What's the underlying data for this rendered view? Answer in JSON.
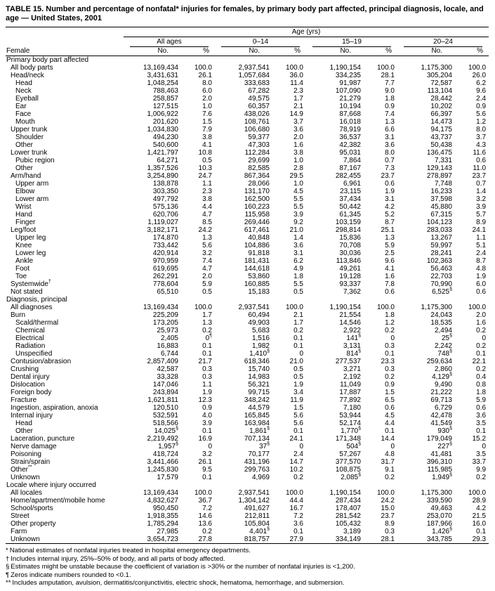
{
  "title": "TABLE 15. Number and percentage of nonfatal* injuries for females, by primary body part affected, principal diagnosis, locale, and age — United States, 2001",
  "header": {
    "age_span_label": "Age (yrs)",
    "row_label_header": "Female",
    "groups": [
      {
        "label": "All ages"
      },
      {
        "label": "0–14"
      },
      {
        "label": "15–19"
      },
      {
        "label": "20–24"
      }
    ],
    "sub_headers": [
      "No.",
      "%"
    ]
  },
  "sections": [
    {
      "title": "Primary body part affected",
      "rows": [
        {
          "label": "All body parts",
          "indent": 1,
          "values": [
            "13,169,434",
            "100.0",
            "2,937,541",
            "100.0",
            "1,190,154",
            "100.0",
            "1,175,300",
            "100.0"
          ]
        },
        {
          "label": "Head/neck",
          "indent": 1,
          "values": [
            "3,431,631",
            "26.1",
            "1,057,684",
            "36.0",
            "334,235",
            "28.1",
            "305,204",
            "26.0"
          ]
        },
        {
          "label": "Head",
          "indent": 2,
          "values": [
            "1,048,254",
            "8.0",
            "333,683",
            "11.4",
            "91,987",
            "7.7",
            "72,587",
            "6.2"
          ]
        },
        {
          "label": "Neck",
          "indent": 2,
          "values": [
            "788,463",
            "6.0",
            "67,282",
            "2.3",
            "107,090",
            "9.0",
            "113,104",
            "9.6"
          ]
        },
        {
          "label": "Eyeball",
          "indent": 2,
          "values": [
            "258,857",
            "2.0",
            "49,575",
            "1.7",
            "21,279",
            "1.8",
            "28,442",
            "2.4"
          ]
        },
        {
          "label": "Ear",
          "indent": 2,
          "values": [
            "127,515",
            "1.0",
            "60,357",
            "2.1",
            "10,194",
            "0.9",
            "10,202",
            "0.9"
          ]
        },
        {
          "label": "Face",
          "indent": 2,
          "values": [
            "1,006,922",
            "7.6",
            "438,026",
            "14.9",
            "87,668",
            "7.4",
            "66,397",
            "5.6"
          ]
        },
        {
          "label": "Mouth",
          "indent": 2,
          "values": [
            "201,620",
            "1.5",
            "108,761",
            "3.7",
            "16,018",
            "1.3",
            "14,473",
            "1.2"
          ]
        },
        {
          "label": "Upper trunk",
          "indent": 1,
          "values": [
            "1,034,830",
            "7.9",
            "106,680",
            "3.6",
            "78,919",
            "6.6",
            "94,175",
            "8.0"
          ]
        },
        {
          "label": "Shoulder",
          "indent": 2,
          "values": [
            "494,230",
            "3.8",
            "59,377",
            "2.0",
            "36,537",
            "3.1",
            "43,737",
            "3.7"
          ]
        },
        {
          "label": "Other",
          "indent": 2,
          "values": [
            "540,600",
            "4.1",
            "47,303",
            "1.6",
            "42,382",
            "3.6",
            "50,438",
            "4.3"
          ]
        },
        {
          "label": "Lower trunk",
          "indent": 1,
          "values": [
            "1,421,797",
            "10.8",
            "112,284",
            "3.8",
            "95,031",
            "8.0",
            "136,475",
            "11.6"
          ]
        },
        {
          "label": "Pubic region",
          "indent": 2,
          "values": [
            "64,271",
            "0.5",
            "29,699",
            "1.0",
            "7,864",
            "0.7",
            "7,331",
            "0.6"
          ]
        },
        {
          "label": "Other",
          "indent": 2,
          "values": [
            "1,357,526",
            "10.3",
            "82,585",
            "2.8",
            "87,167",
            "7.3",
            "129,143",
            "11.0"
          ]
        },
        {
          "label": "Arm/hand",
          "indent": 1,
          "values": [
            "3,254,890",
            "24.7",
            "867,364",
            "29.5",
            "282,455",
            "23.7",
            "278,897",
            "23.7"
          ]
        },
        {
          "label": "Upper arm",
          "indent": 2,
          "values": [
            "138,878",
            "1.1",
            "28,066",
            "1.0",
            "6,961",
            "0.6",
            "7,748",
            "0.7"
          ]
        },
        {
          "label": "Elbow",
          "indent": 2,
          "values": [
            "303,350",
            "2.3",
            "131,170",
            "4.5",
            "23,115",
            "1.9",
            "16,233",
            "1.4"
          ]
        },
        {
          "label": "Lower arm",
          "indent": 2,
          "values": [
            "497,792",
            "3.8",
            "162,500",
            "5.5",
            "37,434",
            "3.1",
            "37,598",
            "3.2"
          ]
        },
        {
          "label": "Wrist",
          "indent": 2,
          "values": [
            "575,136",
            "4.4",
            "160,223",
            "5.5",
            "50,442",
            "4.2",
            "45,880",
            "3.9"
          ]
        },
        {
          "label": "Hand",
          "indent": 2,
          "values": [
            "620,706",
            "4.7",
            "115,958",
            "3.9",
            "61,345",
            "5.2",
            "67,315",
            "5.7"
          ]
        },
        {
          "label": "Finger",
          "indent": 2,
          "values": [
            "1,119,027",
            "8.5",
            "269,446",
            "9.2",
            "103,159",
            "8.7",
            "104,123",
            "8.9"
          ]
        },
        {
          "label": "Leg/foot",
          "indent": 1,
          "values": [
            "3,182,171",
            "24.2",
            "617,461",
            "21.0",
            "298,814",
            "25.1",
            "283,033",
            "24.1"
          ]
        },
        {
          "label": "Upper leg",
          "indent": 2,
          "values": [
            "174,870",
            "1.3",
            "40,848",
            "1.4",
            "15,836",
            "1.3",
            "13,267",
            "1.1"
          ]
        },
        {
          "label": "Knee",
          "indent": 2,
          "values": [
            "733,442",
            "5.6",
            "104,886",
            "3.6",
            "70,708",
            "5.9",
            "59,997",
            "5.1"
          ]
        },
        {
          "label": "Lower leg",
          "indent": 2,
          "values": [
            "420,914",
            "3.2",
            "91,818",
            "3.1",
            "30,036",
            "2.5",
            "28,241",
            "2.4"
          ]
        },
        {
          "label": "Ankle",
          "indent": 2,
          "values": [
            "970,959",
            "7.4",
            "181,431",
            "6.2",
            "113,846",
            "9.6",
            "102,363",
            "8.7"
          ]
        },
        {
          "label": "Foot",
          "indent": 2,
          "values": [
            "619,695",
            "4.7",
            "144,618",
            "4.9",
            "49,261",
            "4.1",
            "56,463",
            "4.8"
          ]
        },
        {
          "label": "Toe",
          "indent": 2,
          "values": [
            "262,291",
            "2.0",
            "53,860",
            "1.8",
            "19,128",
            "1.6",
            "22,703",
            "1.9"
          ]
        },
        {
          "label": "Systemwide†",
          "indent": 1,
          "values": [
            "778,604",
            "5.9",
            "160,885",
            "5.5",
            "93,337",
            "7.8",
            "70,990",
            "6.0"
          ]
        },
        {
          "label": "Not stated",
          "indent": 1,
          "values": [
            "65,510",
            "0.5",
            "15,183",
            "0.5",
            "7,362",
            "0.6",
            "6,525§",
            "0.6"
          ]
        }
      ]
    },
    {
      "title": "Diagnosis, principal",
      "rows": [
        {
          "label": "All diagnoses",
          "indent": 1,
          "values": [
            "13,169,434",
            "100.0",
            "2,937,541",
            "100.0",
            "1,190,154",
            "100.0",
            "1,175,300",
            "100.0"
          ]
        },
        {
          "label": "Burn",
          "indent": 1,
          "values": [
            "225,209",
            "1.7",
            "60,494",
            "2.1",
            "21,554",
            "1.8",
            "24,043",
            "2.0"
          ]
        },
        {
          "label": "Scald/thermal",
          "indent": 2,
          "values": [
            "173,205",
            "1.3",
            "49,903",
            "1.7",
            "14,546",
            "1.2",
            "18,535",
            "1.6"
          ]
        },
        {
          "label": "Chemical",
          "indent": 2,
          "values": [
            "25,973",
            "0.2",
            "5,683",
            "0.2",
            "2,922",
            "0.2",
            "2,494",
            "0.2"
          ]
        },
        {
          "label": "Electrical",
          "indent": 2,
          "values": [
            "2,405",
            "0¶",
            "1,516",
            "0.1",
            "141§",
            "0",
            "25§",
            "0"
          ]
        },
        {
          "label": "Radiation",
          "indent": 2,
          "values": [
            "16,883",
            "0.1",
            "1,982",
            "0.1",
            "3,131",
            "0.3",
            "2,242",
            "0.2"
          ]
        },
        {
          "label": "Unspecified",
          "indent": 2,
          "values": [
            "6,744",
            "0.1",
            "1,410§",
            "0",
            "814§",
            "0.1",
            "748§",
            "0.1"
          ]
        },
        {
          "label": "Contusion/abrasion",
          "indent": 1,
          "values": [
            "2,857,409",
            "21.7",
            "618,346",
            "21.0",
            "277,537",
            "23.3",
            "259,634",
            "22.1"
          ]
        },
        {
          "label": "Crushing",
          "indent": 1,
          "values": [
            "42,587",
            "0.3",
            "15,740",
            "0.5",
            "3,271",
            "0.3",
            "2,860",
            "0.2"
          ]
        },
        {
          "label": "Dental injury",
          "indent": 1,
          "values": [
            "33,328",
            "0.3",
            "14,983",
            "0.5",
            "2,192",
            "0.2",
            "4,129§",
            "0.4"
          ]
        },
        {
          "label": "Dislocation",
          "indent": 1,
          "values": [
            "147,046",
            "1.1",
            "56,321",
            "1.9",
            "11,049",
            "0.9",
            "9,490",
            "0.8"
          ]
        },
        {
          "label": "Foreign body",
          "indent": 1,
          "values": [
            "243,894",
            "1.9",
            "99,715",
            "3.4",
            "17,887",
            "1.5",
            "21,222",
            "1.8"
          ]
        },
        {
          "label": "Fracture",
          "indent": 1,
          "values": [
            "1,621,811",
            "12.3",
            "348,242",
            "11.9",
            "77,892",
            "6.5",
            "69,713",
            "5.9"
          ]
        },
        {
          "label": "Ingestion, aspiration, anoxia",
          "indent": 1,
          "values": [
            "120,510",
            "0.9",
            "44,579",
            "1.5",
            "7,180",
            "0.6",
            "6,729",
            "0.6"
          ]
        },
        {
          "label": "Internal injury",
          "indent": 1,
          "values": [
            "532,591",
            "4.0",
            "165,845",
            "5.6",
            "53,944",
            "4.5",
            "42,478",
            "3.6"
          ]
        },
        {
          "label": "Head",
          "indent": 2,
          "values": [
            "518,566",
            "3.9",
            "163,984",
            "5.6",
            "52,174",
            "4.4",
            "41,549",
            "3.5"
          ]
        },
        {
          "label": "Other",
          "indent": 2,
          "values": [
            "14,025§",
            "0.1",
            "1,861§",
            "0.1",
            "1,770§",
            "0.1",
            "930§",
            "0.1"
          ]
        },
        {
          "label": "Laceration, puncture",
          "indent": 1,
          "values": [
            "2,219,492",
            "16.9",
            "707,134",
            "24.1",
            "171,348",
            "14.4",
            "179,049",
            "15.2"
          ]
        },
        {
          "label": "Nerve damage",
          "indent": 1,
          "values": [
            "1,957§",
            "0",
            "37§",
            "0",
            "504§",
            "0",
            "227§",
            "0"
          ]
        },
        {
          "label": "Poisoning",
          "indent": 1,
          "values": [
            "418,724",
            "3.2",
            "70,177",
            "2.4",
            "57,267",
            "4.8",
            "41,481",
            "3.5"
          ]
        },
        {
          "label": "Strain/sprain",
          "indent": 1,
          "values": [
            "3,441,466",
            "26.1",
            "431,196",
            "14.7",
            "377,570",
            "31.7",
            "396,310",
            "33.7"
          ]
        },
        {
          "label": "Other**",
          "indent": 1,
          "values": [
            "1,245,830",
            "9.5",
            "299,763",
            "10.2",
            "108,875",
            "9.1",
            "115,985",
            "9.9"
          ]
        },
        {
          "label": "Unknown",
          "indent": 1,
          "values": [
            "17,579",
            "0.1",
            "4,969",
            "0.2",
            "2,085§",
            "0.2",
            "1,949§",
            "0.2"
          ]
        }
      ]
    },
    {
      "title": "Locale where injury occurred",
      "rows": [
        {
          "label": "All locales",
          "indent": 1,
          "values": [
            "13,169,434",
            "100.0",
            "2,937,541",
            "100.0",
            "1,190,154",
            "100.0",
            "1,175,300",
            "100.0"
          ]
        },
        {
          "label": "Home/apartment/mobile home",
          "indent": 1,
          "values": [
            "4,832,627",
            "36.7",
            "1,304,142",
            "44.4",
            "287,434",
            "24.2",
            "339,590",
            "28.9"
          ]
        },
        {
          "label": "School/sports",
          "indent": 1,
          "values": [
            "950,450",
            "7.2",
            "491,627",
            "16.7",
            "178,407",
            "15.0",
            "49,463",
            "4.2"
          ]
        },
        {
          "label": "Street",
          "indent": 1,
          "values": [
            "1,918,355",
            "14.6",
            "212,811",
            "7.2",
            "281,542",
            "23.7",
            "253,070",
            "21.5"
          ]
        },
        {
          "label": "Other property",
          "indent": 1,
          "values": [
            "1,785,294",
            "13.6",
            "105,804",
            "3.6",
            "105,432",
            "8.9",
            "187,966",
            "16.0"
          ]
        },
        {
          "label": "Farm",
          "indent": 1,
          "values": [
            "27,985",
            "0.2",
            "4,401§",
            "0.1",
            "3,189",
            "0.3",
            "1,426§",
            "0.1"
          ]
        },
        {
          "label": "Unknown",
          "indent": 1,
          "values": [
            "3,654,723",
            "27.8",
            "818,757",
            "27.9",
            "334,149",
            "28.1",
            "343,785",
            "29.3"
          ]
        }
      ]
    }
  ],
  "footnotes": [
    {
      "marker": "*",
      "text": "National estimates of nonfatal injuries treated in hospital emergency departments."
    },
    {
      "marker": "†",
      "text": "Includes internal injury, 25%–50% of body, and all parts of body affected."
    },
    {
      "marker": "§",
      "text": "Estimates might be unstable because the coefficient of variation is >30% or the number of nonfatal injuries is <1,200."
    },
    {
      "marker": "¶",
      "text": "Zeros indicate numbers rounded to <0.1."
    },
    {
      "marker": "**",
      "text": "Includes amputation, avulsion, dermatitis/conjunctivitis, electric shock, hematoma, hemorrhage, and submersion."
    }
  ]
}
